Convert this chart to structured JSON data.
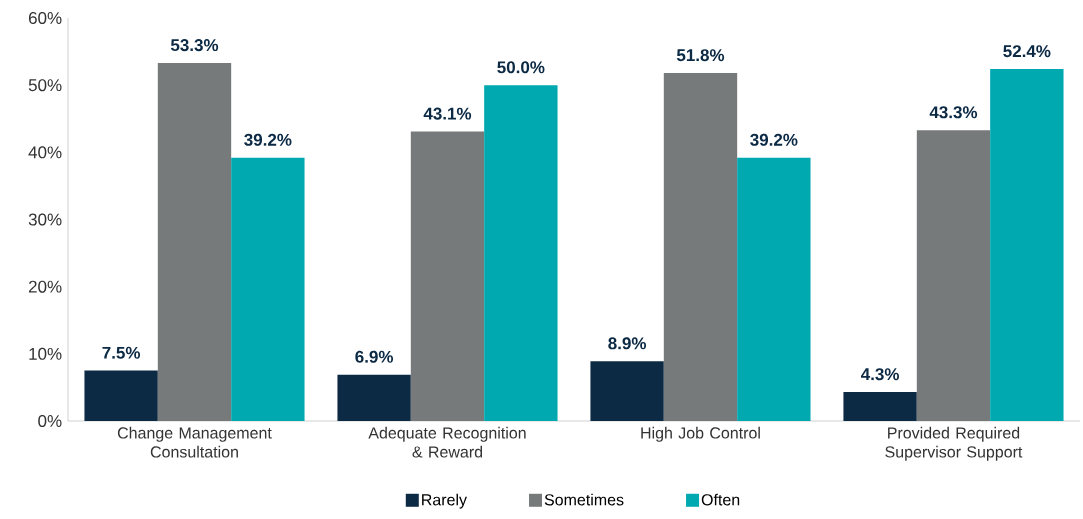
{
  "chart_data": {
    "type": "bar",
    "categories": [
      "Change Management Consultation",
      "Adequate Recognition & Reward",
      "High Job Control",
      "Provided Required Supervisor Support"
    ],
    "series": [
      {
        "name": "Rarely",
        "color": "#0d2a45",
        "values": [
          7.5,
          6.9,
          8.9,
          4.3
        ],
        "value_labels": [
          "7.5%",
          "6.9%",
          "8.9%",
          "4.3%"
        ]
      },
      {
        "name": "Sometimes",
        "color": "#767a7a",
        "values": [
          53.3,
          43.1,
          51.8,
          43.3
        ],
        "value_labels": [
          "53.3%",
          "43.1%",
          "51.8%",
          "43.3%"
        ]
      },
      {
        "name": "Often",
        "color": "#00a9b0",
        "values": [
          39.2,
          50.0,
          39.2,
          52.4
        ],
        "value_labels": [
          "39.2%",
          "50.0%",
          "39.2%",
          "52.4%"
        ]
      }
    ],
    "ylim": [
      0,
      60
    ],
    "yticks": [
      {
        "value": 0,
        "label": "0%"
      },
      {
        "value": 10,
        "label": "10%"
      },
      {
        "value": 20,
        "label": "20%"
      },
      {
        "value": 30,
        "label": "30%"
      },
      {
        "value": 40,
        "label": "40%"
      },
      {
        "value": 50,
        "label": "50%"
      },
      {
        "value": 60,
        "label": "60%"
      }
    ],
    "legend": "bottom"
  }
}
